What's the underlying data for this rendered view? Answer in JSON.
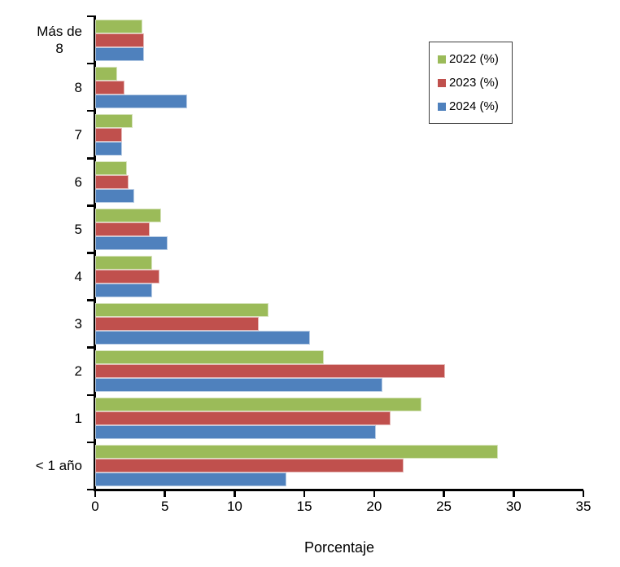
{
  "chart_data": {
    "type": "bar",
    "orientation": "horizontal",
    "title": "",
    "xlabel": "Porcentaje",
    "ylabel": "",
    "xlim": [
      0,
      35
    ],
    "xticks": [
      0,
      5,
      10,
      15,
      20,
      25,
      30,
      35
    ],
    "grid": false,
    "legend_position": "top-right",
    "axis_color": "#000000",
    "background_color": "#FFFFFF",
    "categories": [
      "Más de\n8",
      "8",
      "7",
      "6",
      "5",
      "4",
      "3",
      "2",
      "1",
      "< 1 año"
    ],
    "series": [
      {
        "name": "2022 (%)",
        "color": "#9BBB59",
        "border_color": "#D7E4BD",
        "values": [
          3.4,
          1.6,
          2.7,
          2.3,
          4.7,
          4.1,
          12.4,
          16.4,
          23.4,
          28.9
        ]
      },
      {
        "name": "2023 (%)",
        "color": "#C0504D",
        "border_color": "#E6B9B8",
        "values": [
          3.5,
          2.1,
          1.9,
          2.4,
          3.9,
          4.6,
          11.7,
          25.1,
          21.2,
          22.1
        ]
      },
      {
        "name": "2024 (%)",
        "color": "#4F81BD",
        "border_color": "#B9CDE5",
        "values": [
          3.5,
          6.6,
          1.9,
          2.8,
          5.2,
          4.1,
          15.4,
          20.6,
          20.1,
          13.7
        ]
      }
    ]
  }
}
